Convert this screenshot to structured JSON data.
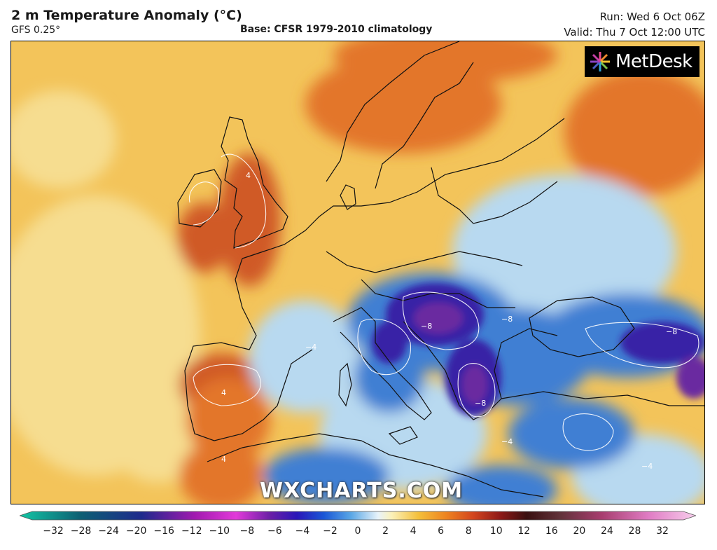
{
  "header": {
    "title": "2 m Temperature Anomaly (°C)",
    "model": "GFS 0.25°",
    "base": "Base: CFSR 1979-2010 climatology",
    "run": "Run: Wed 6 Oct 06Z",
    "valid": "Valid: Thu 7 Oct 12:00 UTC"
  },
  "logo": {
    "text": "MetDesk",
    "icon": "starburst-logo-icon"
  },
  "watermark": "WXCHARTS.COM",
  "colorbar": {
    "ticks": [
      "−32",
      "−28",
      "−24",
      "−20",
      "−16",
      "−12",
      "−10",
      "−8",
      "−6",
      "−4",
      "−2",
      "0",
      "2",
      "4",
      "6",
      "8",
      "10",
      "12",
      "16",
      "20",
      "24",
      "28",
      "32"
    ],
    "stops": [
      {
        "at": 0.0,
        "color": "#13c6a4"
      },
      {
        "at": 0.09,
        "color": "#0d5f73"
      },
      {
        "at": 0.18,
        "color": "#1e2a8c"
      },
      {
        "at": 0.26,
        "color": "#a21ab0"
      },
      {
        "at": 0.32,
        "color": "#e23ad9"
      },
      {
        "at": 0.37,
        "color": "#6b1fa6"
      },
      {
        "at": 0.41,
        "color": "#2a16b8"
      },
      {
        "at": 0.45,
        "color": "#1b57d6"
      },
      {
        "at": 0.49,
        "color": "#5aa7e6"
      },
      {
        "at": 0.53,
        "color": "#e8f3fa"
      },
      {
        "at": 0.55,
        "color": "#fbf1b9"
      },
      {
        "at": 0.59,
        "color": "#f4bf3a"
      },
      {
        "at": 0.63,
        "color": "#ee8420"
      },
      {
        "at": 0.67,
        "color": "#d4461e"
      },
      {
        "at": 0.71,
        "color": "#8f1a17"
      },
      {
        "at": 0.75,
        "color": "#3a1010"
      },
      {
        "at": 0.8,
        "color": "#62323a"
      },
      {
        "at": 0.86,
        "color": "#a73d6e"
      },
      {
        "at": 0.93,
        "color": "#e07cc4"
      },
      {
        "at": 1.0,
        "color": "#f7cdec"
      }
    ]
  },
  "colors": {
    "ocean_warm": "#f3c45a",
    "ocean_pale": "#f6dd90",
    "warm_land": "#e3762c",
    "hot_land": "#d05a28",
    "cold_light": "#b8d9f0",
    "cold_mid": "#3f7fd3",
    "cold_deep": "#3722a6",
    "cold_purple": "#6a2aa0",
    "coast": "#111111"
  },
  "contour_labels": [
    "4",
    "4",
    "−4",
    "−4",
    "−8",
    "−8",
    "−8",
    "−8",
    "4",
    "−4"
  ]
}
